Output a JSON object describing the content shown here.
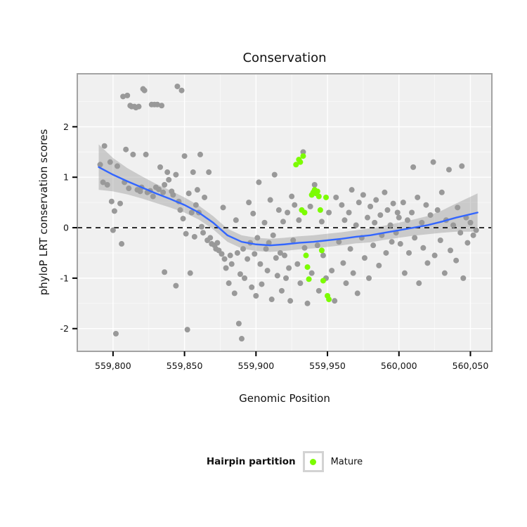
{
  "title": "Conservation",
  "axes": {
    "x_label": "Genomic Position",
    "y_label": "phyloP LRT conservation scores"
  },
  "legend": {
    "title": "Hairpin partition",
    "items": [
      {
        "label": "Mature",
        "color": "#7CFC00"
      }
    ]
  },
  "chart_data": {
    "type": "scatter",
    "title": "Conservation",
    "xlabel": "Genomic Position",
    "ylabel": "phyloP LRT conservation scores",
    "xlim": [
      559775,
      560065
    ],
    "ylim": [
      -2.45,
      3.05
    ],
    "grid": true,
    "legend_position": "bottom",
    "x_ticks": {
      "values": [
        559800,
        559850,
        559900,
        559950,
        560000,
        560050
      ],
      "labels": [
        "559,800",
        "559,850",
        "559,900",
        "559,950",
        "560,000",
        "560,050"
      ]
    },
    "y_ticks": {
      "values": [
        -2,
        -1,
        0,
        1,
        2
      ],
      "labels": [
        "-2",
        "-1",
        "0",
        "1",
        "2"
      ]
    },
    "reference_line_y": 0,
    "colors": {
      "gray_points": "#999999",
      "mature_points": "#7CFC00",
      "smooth_line": "#3366FF",
      "ribbon": "rgba(120,120,120,0.32)",
      "panel_bg": "#F0F0F0",
      "grid_major": "#FFFFFF",
      "grid_minor": "#FAFAFA",
      "panel_border": "#A3A3A3",
      "reference_line": "#000000"
    },
    "series": [
      {
        "name": "Other",
        "color": "#999999",
        "points": [
          [
            559791,
            1.25
          ],
          [
            559793,
            0.9
          ],
          [
            559794,
            1.62
          ],
          [
            559796,
            0.85
          ],
          [
            559798,
            1.3
          ],
          [
            559799,
            0.52
          ],
          [
            559800,
            -0.05
          ],
          [
            559801,
            0.33
          ],
          [
            559802,
            -2.1
          ],
          [
            559803,
            1.22
          ],
          [
            559805,
            0.48
          ],
          [
            559806,
            -0.32
          ],
          [
            559807,
            2.6
          ],
          [
            559808,
            0.9
          ],
          [
            559809,
            1.55
          ],
          [
            559810,
            2.62
          ],
          [
            559812,
            2.42
          ],
          [
            559813,
            2.4
          ],
          [
            559815,
            2.4
          ],
          [
            559816,
            2.38
          ],
          [
            559818,
            2.4
          ],
          [
            559821,
            2.75
          ],
          [
            559822,
            2.72
          ],
          [
            559827,
            2.44
          ],
          [
            559829,
            2.44
          ],
          [
            559831,
            2.44
          ],
          [
            559834,
            2.42
          ],
          [
            559845,
            2.8
          ],
          [
            559848,
            2.72
          ],
          [
            559811,
            0.78
          ],
          [
            559814,
            1.45
          ],
          [
            559817,
            0.75
          ],
          [
            559819,
            0.72
          ],
          [
            559820,
            0.8
          ],
          [
            559823,
            1.45
          ],
          [
            559824,
            0.7
          ],
          [
            559826,
            0.73
          ],
          [
            559828,
            0.62
          ],
          [
            559830,
            0.8
          ],
          [
            559832,
            0.76
          ],
          [
            559833,
            1.2
          ],
          [
            559835,
            0.7
          ],
          [
            559836,
            0.85
          ],
          [
            559838,
            1.1
          ],
          [
            559839,
            0.95
          ],
          [
            559841,
            0.72
          ],
          [
            559842,
            0.65
          ],
          [
            559844,
            1.05
          ],
          [
            559846,
            0.52
          ],
          [
            559847,
            0.35
          ],
          [
            559849,
            0.18
          ],
          [
            559850,
            1.42
          ],
          [
            559851,
            -0.12
          ],
          [
            559853,
            0.68
          ],
          [
            559854,
            -0.9
          ],
          [
            559855,
            0.3
          ],
          [
            559856,
            1.1
          ],
          [
            559857,
            -0.18
          ],
          [
            559858,
            0.45
          ],
          [
            559859,
            0.75
          ],
          [
            559836,
            -0.88
          ],
          [
            559844,
            -1.15
          ],
          [
            559852,
            -2.02
          ],
          [
            559860,
            0.3
          ],
          [
            559861,
            1.45
          ],
          [
            559862,
            0.02
          ],
          [
            559863,
            -0.1
          ],
          [
            559864,
            0.6
          ],
          [
            559866,
            -0.25
          ],
          [
            559867,
            1.1
          ],
          [
            559868,
            -0.2
          ],
          [
            559869,
            -0.32
          ],
          [
            559871,
            -0.35
          ],
          [
            559872,
            -0.42
          ],
          [
            559873,
            -0.3
          ],
          [
            559874,
            -0.45
          ],
          [
            559876,
            -0.52
          ],
          [
            559877,
            0.4
          ],
          [
            559878,
            -0.62
          ],
          [
            559879,
            -0.8
          ],
          [
            559881,
            -1.1
          ],
          [
            559882,
            -0.55
          ],
          [
            559883,
            -0.72
          ],
          [
            559885,
            -1.3
          ],
          [
            559886,
            0.15
          ],
          [
            559887,
            -0.5
          ],
          [
            559888,
            -1.9
          ],
          [
            559889,
            -0.92
          ],
          [
            559890,
            -2.2
          ],
          [
            559891,
            -0.42
          ],
          [
            559892,
            -1.0
          ],
          [
            559894,
            -0.62
          ],
          [
            559895,
            0.5
          ],
          [
            559896,
            -0.3
          ],
          [
            559897,
            -1.18
          ],
          [
            559898,
            0.28
          ],
          [
            559899,
            -0.52
          ],
          [
            559900,
            -1.35
          ],
          [
            559901,
            -0.2
          ],
          [
            559902,
            0.9
          ],
          [
            559903,
            -0.72
          ],
          [
            559904,
            -1.12
          ],
          [
            559906,
            0.1
          ],
          [
            559907,
            -0.42
          ],
          [
            559908,
            -0.85
          ],
          [
            559909,
            -0.3
          ],
          [
            559910,
            0.55
          ],
          [
            559911,
            -1.42
          ],
          [
            559912,
            -0.15
          ],
          [
            559913,
            1.05
          ],
          [
            559914,
            -0.6
          ],
          [
            559915,
            -0.95
          ],
          [
            559916,
            0.35
          ],
          [
            559917,
            -0.5
          ],
          [
            559918,
            -1.25
          ],
          [
            559919,
            0.12
          ],
          [
            559920,
            -0.55
          ],
          [
            559921,
            -1.0
          ],
          [
            559922,
            0.3
          ],
          [
            559923,
            -0.8
          ],
          [
            559924,
            -1.45
          ],
          [
            559925,
            0.62
          ],
          [
            559926,
            -0.25
          ],
          [
            559927,
            0.45
          ],
          [
            559929,
            -0.72
          ],
          [
            559930,
            0.15
          ],
          [
            559931,
            -1.1
          ],
          [
            559933,
            1.5
          ],
          [
            559934,
            -0.4
          ],
          [
            559936,
            -1.5
          ],
          [
            559938,
            0.42
          ],
          [
            559939,
            -0.9
          ],
          [
            559941,
            0.85
          ],
          [
            559943,
            -0.35
          ],
          [
            559944,
            -1.25
          ],
          [
            559946,
            0.12
          ],
          [
            559947,
            -0.55
          ],
          [
            559949,
            -1.0
          ],
          [
            559951,
            0.3
          ],
          [
            559953,
            -0.85
          ],
          [
            559955,
            -1.45
          ],
          [
            559956,
            0.6
          ],
          [
            559958,
            -0.28
          ],
          [
            559960,
            0.45
          ],
          [
            559961,
            -0.7
          ],
          [
            559962,
            0.15
          ],
          [
            559963,
            -1.1
          ],
          [
            559965,
            0.3
          ],
          [
            559966,
            -0.42
          ],
          [
            559967,
            0.75
          ],
          [
            559968,
            -0.9
          ],
          [
            559970,
            0.05
          ],
          [
            559971,
            -1.3
          ],
          [
            559972,
            0.5
          ],
          [
            559974,
            -0.2
          ],
          [
            559975,
            0.65
          ],
          [
            559976,
            -0.6
          ],
          [
            559978,
            0.2
          ],
          [
            559979,
            -1.0
          ],
          [
            559980,
            0.42
          ],
          [
            559982,
            -0.35
          ],
          [
            559983,
            0.1
          ],
          [
            559984,
            0.55
          ],
          [
            559986,
            -0.75
          ],
          [
            559987,
            0.25
          ],
          [
            559988,
            -0.15
          ],
          [
            559990,
            0.7
          ],
          [
            559991,
            -0.5
          ],
          [
            559992,
            0.35
          ],
          [
            559994,
            0.05
          ],
          [
            559995,
            -0.28
          ],
          [
            559996,
            0.48
          ],
          [
            559998,
            -0.1
          ],
          [
            559999,
            0.3
          ],
          [
            560000,
            0.2
          ],
          [
            560001,
            -0.32
          ],
          [
            560003,
            0.5
          ],
          [
            560004,
            -0.9
          ],
          [
            560006,
            0.15
          ],
          [
            560007,
            -0.5
          ],
          [
            560009,
            0.3
          ],
          [
            560010,
            1.2
          ],
          [
            560011,
            -0.2
          ],
          [
            560013,
            0.6
          ],
          [
            560014,
            -1.1
          ],
          [
            560016,
            0.1
          ],
          [
            560017,
            -0.4
          ],
          [
            560019,
            0.45
          ],
          [
            560020,
            -0.7
          ],
          [
            560022,
            0.25
          ],
          [
            560024,
            1.3
          ],
          [
            560025,
            -0.55
          ],
          [
            560027,
            0.35
          ],
          [
            560029,
            -0.25
          ],
          [
            560030,
            0.7
          ],
          [
            560032,
            -0.9
          ],
          [
            560033,
            0.15
          ],
          [
            560035,
            1.15
          ],
          [
            560036,
            -0.45
          ],
          [
            560038,
            0.05
          ],
          [
            560040,
            -0.65
          ],
          [
            560041,
            0.4
          ],
          [
            560043,
            -0.1
          ],
          [
            560044,
            1.22
          ],
          [
            560045,
            -1.0
          ],
          [
            560047,
            0.2
          ],
          [
            560048,
            -0.3
          ],
          [
            560050,
            0.1
          ],
          [
            560052,
            -0.15
          ],
          [
            560054,
            -0.05
          ]
        ]
      },
      {
        "name": "Mature",
        "color": "#7CFC00",
        "points": [
          [
            559928,
            1.25
          ],
          [
            559930,
            1.35
          ],
          [
            559931,
            1.3
          ],
          [
            559933,
            1.42
          ],
          [
            559932,
            0.35
          ],
          [
            559934,
            0.3
          ],
          [
            559935,
            -0.55
          ],
          [
            559936,
            -0.78
          ],
          [
            559937,
            -1.02
          ],
          [
            559939,
            0.65
          ],
          [
            559940,
            0.7
          ],
          [
            559941,
            0.75
          ],
          [
            559942,
            0.68
          ],
          [
            559943,
            0.72
          ],
          [
            559944,
            0.62
          ],
          [
            559945,
            0.35
          ],
          [
            559946,
            -0.45
          ],
          [
            559947,
            -1.05
          ],
          [
            559949,
            0.6
          ],
          [
            559950,
            -1.35
          ],
          [
            559951,
            -1.42
          ]
        ]
      }
    ],
    "smooth": {
      "x": [
        559790,
        559800,
        559810,
        559820,
        559830,
        559840,
        559850,
        559860,
        559870,
        559880,
        559890,
        559900,
        559910,
        559920,
        559930,
        559940,
        559950,
        559960,
        559970,
        559980,
        559990,
        560000,
        560010,
        560020,
        560030,
        560040,
        560055
      ],
      "y": [
        1.2,
        1.05,
        0.92,
        0.8,
        0.68,
        0.57,
        0.45,
        0.3,
        0.1,
        -0.15,
        -0.28,
        -0.33,
        -0.35,
        -0.33,
        -0.3,
        -0.28,
        -0.25,
        -0.22,
        -0.18,
        -0.15,
        -0.1,
        -0.05,
        0.0,
        0.05,
        0.12,
        0.2,
        0.3
      ],
      "se": [
        0.45,
        0.33,
        0.26,
        0.22,
        0.19,
        0.17,
        0.15,
        0.14,
        0.13,
        0.13,
        0.13,
        0.13,
        0.13,
        0.13,
        0.13,
        0.13,
        0.13,
        0.13,
        0.13,
        0.14,
        0.14,
        0.15,
        0.16,
        0.18,
        0.22,
        0.28,
        0.38
      ]
    }
  }
}
